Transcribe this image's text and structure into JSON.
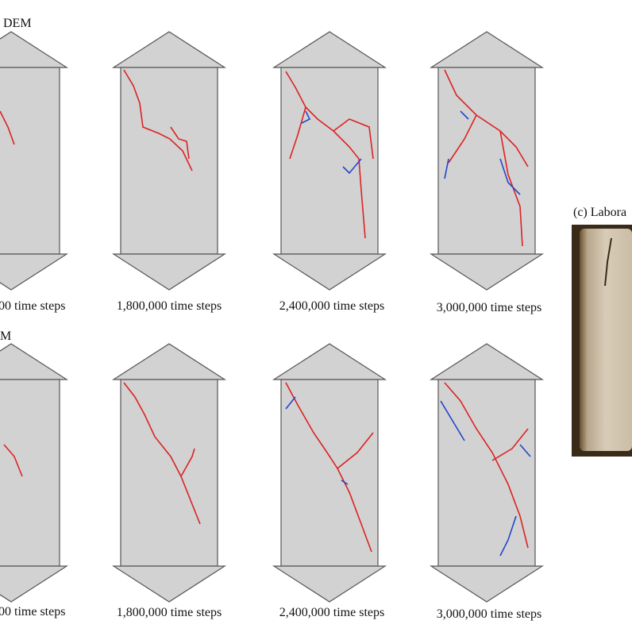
{
  "rows": [
    {
      "title": "DEM",
      "panels": [
        "00 time steps",
        "1,800,000 time steps",
        "2,400,000 time steps",
        "3,000,000 time steps"
      ]
    },
    {
      "title": "M",
      "panels": [
        "00 time steps",
        "1,800,000 time steps",
        "2,400,000 time steps",
        "3,000,000 time steps"
      ]
    }
  ],
  "photo": {
    "title": "(c) Labora"
  }
}
